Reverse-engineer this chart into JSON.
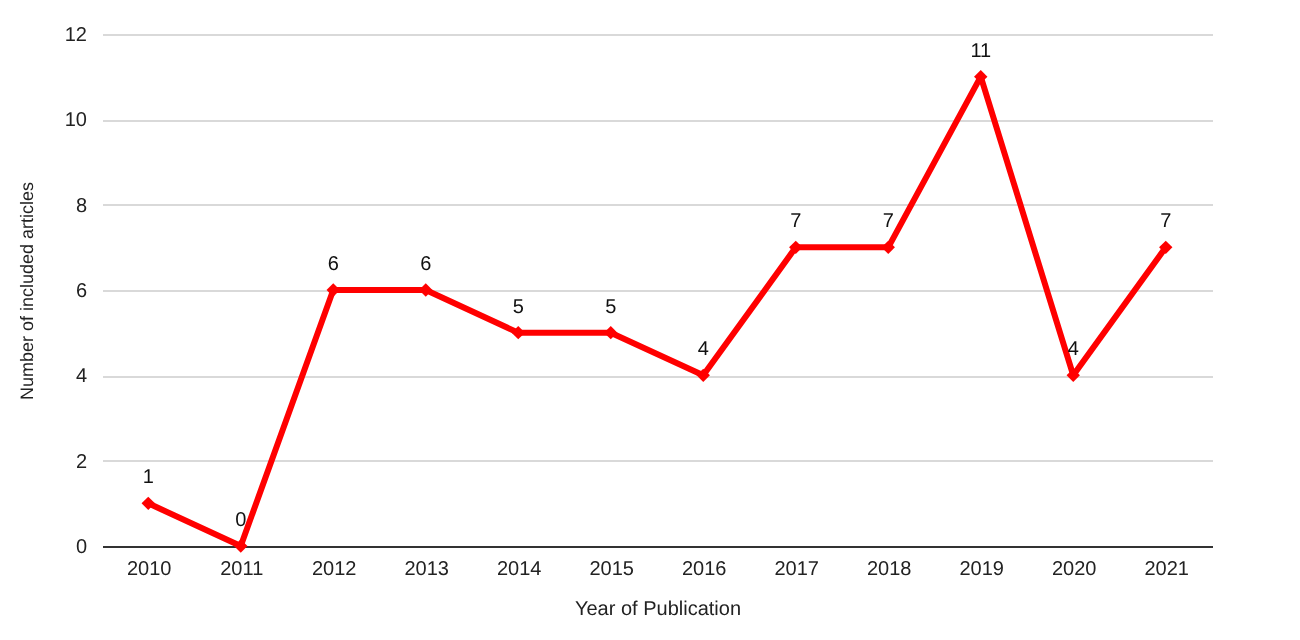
{
  "chart_data": {
    "type": "line",
    "xlabel": "Year of Publication",
    "ylabel": "Number of included articles",
    "categories": [
      "2010",
      "2011",
      "2012",
      "2013",
      "2014",
      "2015",
      "2016",
      "2017",
      "2018",
      "2019",
      "2020",
      "2021"
    ],
    "series": [
      {
        "color": "#ff0000",
        "values": [
          1,
          0,
          6,
          6,
          5,
          5,
          4,
          7,
          7,
          11,
          4,
          7
        ]
      }
    ],
    "ylim": [
      0,
      12
    ],
    "yticks": [
      0,
      2,
      4,
      6,
      8,
      10,
      12
    ],
    "grid": "y",
    "marker": "diamond",
    "line_style": "solid",
    "data_labels": true,
    "legend": false
  }
}
